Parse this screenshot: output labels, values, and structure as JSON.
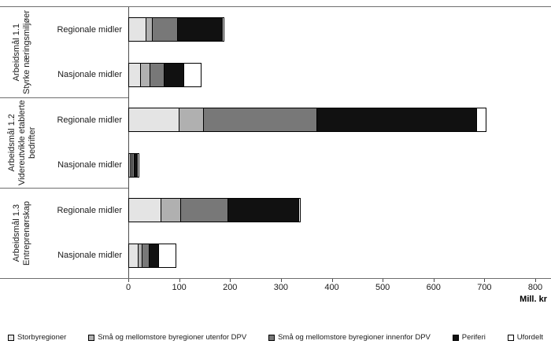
{
  "chart_data": {
    "type": "bar",
    "orientation": "horizontal",
    "stacked": true,
    "title": "",
    "xlabel": "Mill. kr",
    "xlim": [
      0,
      800
    ],
    "xticks": [
      0,
      100,
      200,
      300,
      400,
      500,
      600,
      700,
      800
    ],
    "grid": false,
    "legend_position": "bottom",
    "series_names": [
      "Storbyregioner",
      "Små og mellomstore byregioner utenfor DPV",
      "Små og mellomstore byregioner innenfor DPV",
      "Periferi",
      "Ufordelt"
    ],
    "series_colors": [
      "#e4e4e4",
      "#b0b0b0",
      "#787878",
      "#111111",
      "#ffffff"
    ],
    "groups": [
      {
        "label_line1": "Arbeidsmål 1.1",
        "label_line2": "Styrke næringsmiljøer",
        "bars": [
          {
            "category": "Regionale midler",
            "values": [
              35,
              15,
              50,
              90,
              5
            ]
          },
          {
            "category": "Nasjonale midler",
            "values": [
              25,
              20,
              30,
              40,
              35
            ]
          }
        ]
      },
      {
        "label_line1": "Arbeidsmål 1.2",
        "label_line2": "Videreutvikle etablerte bedrifter",
        "bars": [
          {
            "category": "Regionale midler",
            "values": [
              100,
              50,
              225,
              315,
              20
            ]
          },
          {
            "category": "Nasjonale midler",
            "values": [
              5,
              4,
              6,
              8,
              5
            ]
          }
        ]
      },
      {
        "label_line1": "Arbeidsmål 1.3",
        "label_line2": "Entreprenørskap",
        "bars": [
          {
            "category": "Regionale midler",
            "values": [
              65,
              40,
              95,
              140,
              5
            ]
          },
          {
            "category": "Nasjonale midler",
            "values": [
              20,
              10,
              15,
              20,
              35
            ]
          }
        ]
      }
    ],
    "legend": [
      {
        "label": "Storbyregioner",
        "color": "#e4e4e4"
      },
      {
        "label": "Små og mellomstore byregioner utenfor DPV",
        "color": "#b0b0b0"
      },
      {
        "label": "Små og mellomstore byregioner innenfor DPV",
        "color": "#787878"
      },
      {
        "label": "Periferi",
        "color": "#111111"
      },
      {
        "label": "Ufordelt",
        "color": "#ffffff"
      }
    ]
  }
}
